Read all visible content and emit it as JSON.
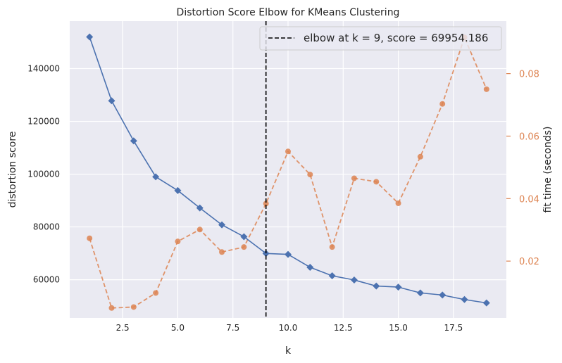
{
  "chart_data": {
    "type": "line",
    "title": "Distortion Score Elbow for KMeans Clustering",
    "xlabel": "k",
    "ylabel": "distortion score",
    "y2label": "fit time (seconds)",
    "xlim": [
      0.1,
      19.9
    ],
    "ylim": [
      45500,
      158000
    ],
    "y2lim": [
      0.0018,
      0.0968
    ],
    "x_ticks": [
      2.5,
      5.0,
      7.5,
      10.0,
      12.5,
      15.0,
      17.5
    ],
    "x_tick_labels": [
      "2.5",
      "5.0",
      "7.5",
      "10.0",
      "12.5",
      "15.0",
      "17.5"
    ],
    "y_ticks": [
      60000,
      80000,
      100000,
      120000,
      140000
    ],
    "y_tick_labels": [
      "60000",
      "80000",
      "100000",
      "120000",
      "140000"
    ],
    "y2_ticks": [
      0.02,
      0.04,
      0.06,
      0.08
    ],
    "y2_tick_labels": [
      "0.02",
      "0.04",
      "0.06",
      "0.08"
    ],
    "grid": true,
    "legend_position": "top-right",
    "elbow": {
      "k": 9,
      "legend_label": "elbow at k = 9, score = 69954.186"
    },
    "series": [
      {
        "name": "distortion score",
        "axis": "left",
        "color": "#4c72b0",
        "marker": "diamond",
        "linestyle": "solid",
        "x": [
          1,
          2,
          3,
          4,
          5,
          6,
          7,
          8,
          9,
          10,
          11,
          12,
          13,
          14,
          15,
          16,
          17,
          18,
          19
        ],
        "values": [
          152000,
          127800,
          112600,
          99000,
          93800,
          87200,
          80800,
          76300,
          69954,
          69600,
          64700,
          61500,
          59900,
          57600,
          57200,
          55000,
          54200,
          52500,
          51200
        ]
      },
      {
        "name": "fit time (seconds)",
        "axis": "right",
        "color": "#dd8452",
        "marker": "circle",
        "linestyle": "dashed",
        "x": [
          1,
          2,
          3,
          4,
          5,
          6,
          7,
          8,
          9,
          10,
          11,
          12,
          13,
          14,
          15,
          16,
          17,
          18,
          19
        ],
        "values": [
          0.0273,
          0.005,
          0.0053,
          0.0098,
          0.0263,
          0.0301,
          0.0229,
          0.0245,
          0.0384,
          0.0551,
          0.0477,
          0.0245,
          0.0465,
          0.0454,
          0.0385,
          0.0534,
          0.0703,
          0.0916,
          0.075
        ]
      }
    ],
    "colors": {
      "background": "#eaeaf2",
      "grid": "#ffffff",
      "primary": "#4c72b0",
      "secondary": "#dd8452",
      "elbow_line": "#000000"
    }
  }
}
